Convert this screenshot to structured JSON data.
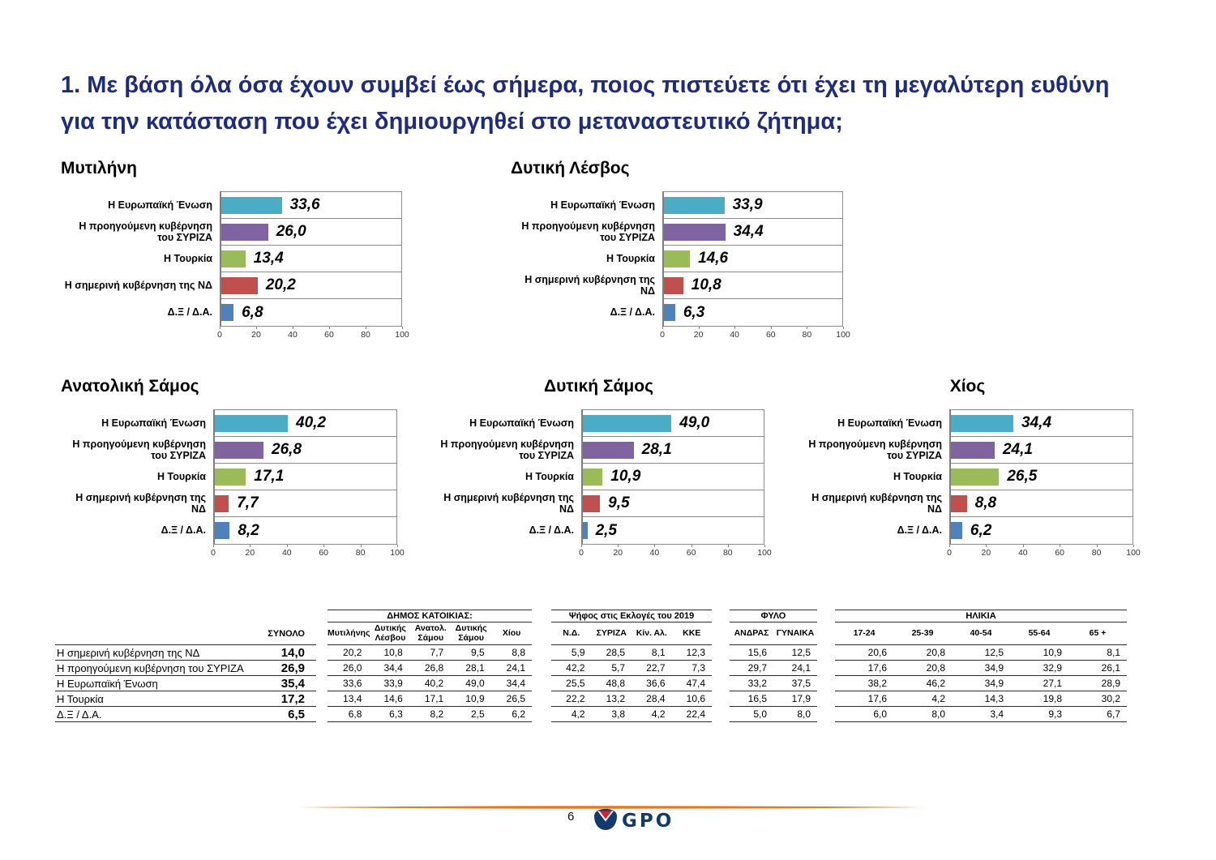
{
  "page": {
    "title": "1. Με βάση όλα όσα έχουν συμβεί έως σήμερα, ποιος πιστεύετε ότι έχει τη μεγαλύτερη ευθύνη για την κατάσταση που έχει δημιουργηθεί στο μεταναστευτικό ζήτημα;",
    "page_number": "6",
    "logo_text": "GPO"
  },
  "colors": {
    "title_blue": "#1F2C7E",
    "series": [
      "#4BACC6",
      "#8064A2",
      "#9BBB59",
      "#C0504D",
      "#4F81BD"
    ],
    "grid_gray": "#8C8C8C",
    "table_line": "#2b2b2b",
    "footer_orange": "#E87722",
    "logo_navy": "#123A6D",
    "logo_red": "#D3222A"
  },
  "chart_data": [
    {
      "type": "bar",
      "orientation": "horizontal",
      "title": "Μυτιλήνη",
      "categories": [
        "Η Ευρωπαϊκή Ένωση",
        "Η προηγούμενη κυβέρνηση του ΣΥΡΙΖΑ",
        "Η Τουρκία",
        "Η σημερινή κυβέρνηση της ΝΔ",
        "Δ.Ξ / Δ.Α."
      ],
      "values": [
        33.6,
        26.0,
        13.4,
        20.2,
        6.8
      ],
      "value_labels": [
        "33,6",
        "26,0",
        "13,4",
        "20,2",
        "6,8"
      ],
      "xlim": [
        0,
        100
      ],
      "ticks": [
        0,
        20,
        40,
        60,
        80,
        100
      ]
    },
    {
      "type": "bar",
      "orientation": "horizontal",
      "title": "Δυτική Λέσβος",
      "categories": [
        "Η Ευρωπαϊκή Ένωση",
        "Η προηγούμενη κυβέρνηση του ΣΥΡΙΖΑ",
        "Η Τουρκία",
        "Η σημερινή κυβέρνηση της ΝΔ",
        "Δ.Ξ / Δ.Α."
      ],
      "values": [
        33.9,
        34.4,
        14.6,
        10.8,
        6.3
      ],
      "value_labels": [
        "33,9",
        "34,4",
        "14,6",
        "10,8",
        "6,3"
      ],
      "xlim": [
        0,
        100
      ],
      "ticks": [
        0,
        20,
        40,
        60,
        80,
        100
      ]
    },
    {
      "type": "bar",
      "orientation": "horizontal",
      "title": "Ανατολική Σάμος",
      "categories": [
        "Η Ευρωπαϊκή Ένωση",
        "Η προηγούμενη κυβέρνηση του ΣΥΡΙΖΑ",
        "Η Τουρκία",
        "Η σημερινή κυβέρνηση της ΝΔ",
        "Δ.Ξ / Δ.Α."
      ],
      "values": [
        40.2,
        26.8,
        17.1,
        7.7,
        8.2
      ],
      "value_labels": [
        "40,2",
        "26,8",
        "17,1",
        "7,7",
        "8,2"
      ],
      "xlim": [
        0,
        100
      ],
      "ticks": [
        0,
        20,
        40,
        60,
        80,
        100
      ]
    },
    {
      "type": "bar",
      "orientation": "horizontal",
      "title": "Δυτική Σάμος",
      "categories": [
        "Η Ευρωπαϊκή Ένωση",
        "Η προηγούμενη κυβέρνηση του ΣΥΡΙΖΑ",
        "Η Τουρκία",
        "Η σημερινή κυβέρνηση της ΝΔ",
        "Δ.Ξ / Δ.Α."
      ],
      "values": [
        49.0,
        28.1,
        10.9,
        9.5,
        2.5
      ],
      "value_labels": [
        "49,0",
        "28,1",
        "10,9",
        "9,5",
        "2,5"
      ],
      "xlim": [
        0,
        100
      ],
      "ticks": [
        0,
        20,
        40,
        60,
        80,
        100
      ]
    },
    {
      "type": "bar",
      "orientation": "horizontal",
      "title": "Χίος",
      "categories": [
        "Η Ευρωπαϊκή Ένωση",
        "Η προηγούμενη κυβέρνηση του ΣΥΡΙΖΑ",
        "Η Τουρκία",
        "Η σημερινή κυβέρνηση της ΝΔ",
        "Δ.Ξ / Δ.Α."
      ],
      "values": [
        34.4,
        24.1,
        26.5,
        8.8,
        6.2
      ],
      "value_labels": [
        "34,4",
        "24,1",
        "26,5",
        "8,8",
        "6,2"
      ],
      "xlim": [
        0,
        100
      ],
      "ticks": [
        0,
        20,
        40,
        60,
        80,
        100
      ]
    }
  ],
  "table": {
    "total_header": "ΣΥΝΟΛΟ",
    "row_labels": [
      "Η σημερινή κυβέρνηση της ΝΔ",
      "Η προηγούμενη κυβέρνηση του ΣΥΡΙΖΑ",
      "Η Ευρωπαϊκή Ένωση",
      "Η Τουρκία",
      "Δ.Ξ / Δ.Α."
    ],
    "totals": [
      "14,0",
      "26,9",
      "35,4",
      "17,2",
      "6,5"
    ],
    "groups": [
      {
        "title": "ΔΗΜΟΣ ΚΑΤΟΙΚΙΑΣ:",
        "columns": [
          "Μυτιλήνης",
          "Δυτικής Λέσβου",
          "Ανατολ. Σάμου",
          "Δυτικής Σάμου",
          "Χίου"
        ],
        "data": [
          [
            "20,2",
            "10,8",
            "7,7",
            "9,5",
            "8,8"
          ],
          [
            "26,0",
            "34,4",
            "26,8",
            "28,1",
            "24,1"
          ],
          [
            "33,6",
            "33,9",
            "40,2",
            "49,0",
            "34,4"
          ],
          [
            "13,4",
            "14,6",
            "17,1",
            "10,9",
            "26,5"
          ],
          [
            "6,8",
            "6,3",
            "8,2",
            "2,5",
            "6,2"
          ]
        ]
      },
      {
        "title": "Ψήφος στις Εκλογές του 2019",
        "columns": [
          "Ν.Δ.",
          "ΣΥΡΙΖΑ",
          "Κίν. Αλ.",
          "ΚΚΕ"
        ],
        "data": [
          [
            "5,9",
            "28,5",
            "8,1",
            "12,3"
          ],
          [
            "42,2",
            "5,7",
            "22,7",
            "7,3"
          ],
          [
            "25,5",
            "48,8",
            "36,6",
            "47,4"
          ],
          [
            "22,2",
            "13,2",
            "28,4",
            "10,6"
          ],
          [
            "4,2",
            "3,8",
            "4,2",
            "22,4"
          ]
        ]
      },
      {
        "title": "ΦΥΛΟ",
        "columns": [
          "ΑΝΔΡΑΣ",
          "ΓΥΝΑΙΚΑ"
        ],
        "data": [
          [
            "15,6",
            "12,5"
          ],
          [
            "29,7",
            "24,1"
          ],
          [
            "33,2",
            "37,5"
          ],
          [
            "16,5",
            "17,9"
          ],
          [
            "5,0",
            "8,0"
          ]
        ]
      },
      {
        "title": "ΗΛΙΚΙΑ",
        "columns": [
          "17-24",
          "25-39",
          "40-54",
          "55-64",
          "65 +"
        ],
        "data": [
          [
            "20,6",
            "20,8",
            "12,5",
            "10,9",
            "8,1"
          ],
          [
            "17,6",
            "20,8",
            "34,9",
            "32,9",
            "26,1"
          ],
          [
            "38,2",
            "46,2",
            "34,9",
            "27,1",
            "28,9"
          ],
          [
            "17,6",
            "4,2",
            "14,3",
            "19,8",
            "30,2"
          ],
          [
            "6,0",
            "8,0",
            "3,4",
            "9,3",
            "6,7"
          ]
        ]
      }
    ]
  }
}
